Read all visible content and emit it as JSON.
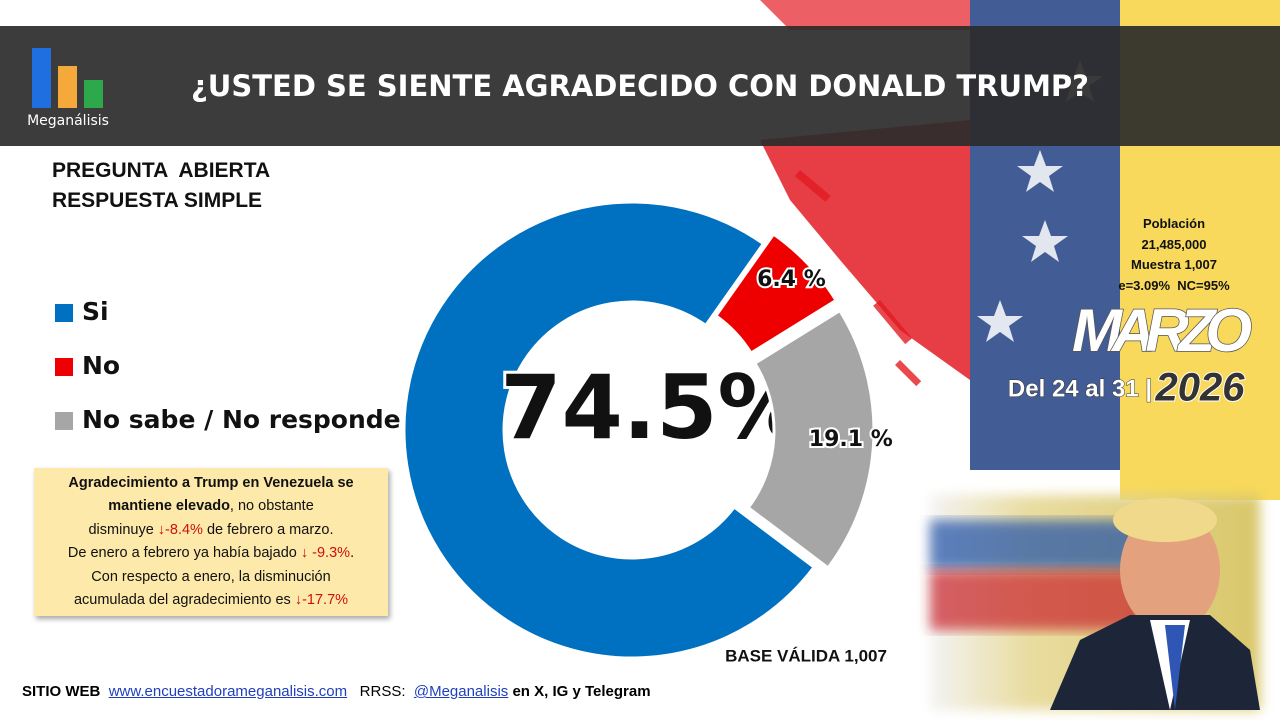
{
  "header": {
    "logo": "Meganálisis",
    "title": "¿USTED SE SIENTE AGRADECIDO CON DONALD TRUMP?"
  },
  "question_type": [
    "PREGUNTA  ABIERTA",
    "RESPUESTA SIMPLE"
  ],
  "chart_data": {
    "type": "donut",
    "categories": [
      "Si",
      "No",
      "No sabe / No responde"
    ],
    "values": [
      74.5,
      6.4,
      19.1
    ],
    "value_labels": [
      "74.5%",
      "6.4 %",
      "19.1 %"
    ],
    "colors": [
      "#0070c0",
      "#ee0000",
      "#a6a6a6"
    ],
    "legend_position": "left"
  },
  "note": [
    [
      {
        "text": "Agradecimiento a Trump en Venezuela se",
        "style": "bold"
      }
    ],
    [
      {
        "text": "mantiene elevado",
        "style": "bold"
      },
      {
        "text": ", no obstante",
        "style": "normal"
      }
    ],
    [
      {
        "text": "disminuye ",
        "style": "normal"
      },
      {
        "text": "↓-8.4%",
        "style": "red"
      },
      {
        "text": " de febrero a marzo.",
        "style": "normal"
      }
    ],
    [
      {
        "text": "De enero a febrero ya había bajado ",
        "style": "normal"
      },
      {
        "text": "↓ -9.3%",
        "style": "red"
      },
      {
        "text": ".",
        "style": "normal"
      }
    ],
    [
      {
        "text": "Con respecto a enero, la disminución",
        "style": "normal"
      }
    ],
    [
      {
        "text": "acumulada del agradecimiento es ",
        "style": "normal"
      },
      {
        "text": "↓-17.7%",
        "style": "red"
      }
    ]
  ],
  "sample": [
    "Población",
    "21,485,000",
    "Muestra 1,007",
    "e=3.09%  NC=95%"
  ],
  "period": {
    "month": "MARZO",
    "days": "Del 24 al 31 |",
    "year": "2026"
  },
  "base": "BASE VÁLIDA 1,007",
  "footer": {
    "site_label": "SITIO WEB",
    "site": "www.encuestadorameganalisis.com",
    "social_label": "RRSS:",
    "social": "@Meganalisis",
    "social_suffix": "en X, IG y Telegram"
  }
}
